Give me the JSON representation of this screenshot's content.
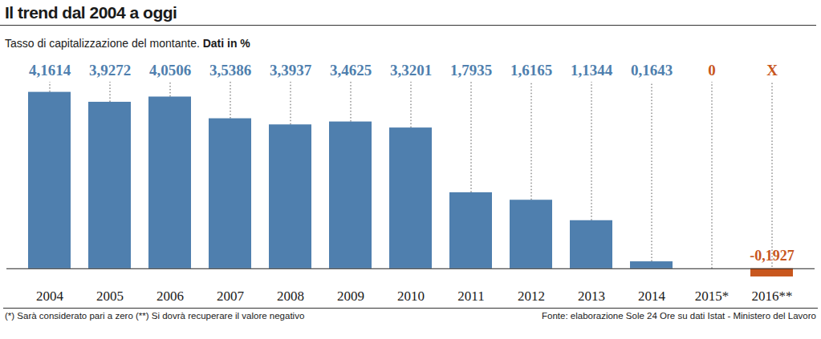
{
  "chart_data": {
    "type": "bar",
    "title": "Il trend dal 2004 a oggi",
    "subtitle": "Tasso di capitalizzazione del montante.",
    "subtitle_bold": "Dati in %",
    "categories": [
      "2004",
      "2005",
      "2006",
      "2007",
      "2008",
      "2009",
      "2010",
      "2011",
      "2012",
      "2013",
      "2014",
      "2015*",
      "2016**"
    ],
    "values": [
      4.1614,
      3.9272,
      4.0506,
      3.5386,
      3.3937,
      3.4625,
      3.3201,
      1.7935,
      1.6165,
      1.1344,
      0.1643,
      0,
      -0.1927
    ],
    "value_labels": [
      "4,1614",
      "3,9272",
      "4,0506",
      "3,5386",
      "3,3937",
      "3,4625",
      "3,3201",
      "1,7935",
      "1,6165",
      "1,1344",
      "0,1643",
      "0",
      "-0,1927"
    ],
    "colors": [
      "#4f7fae",
      "#4f7fae",
      "#4f7fae",
      "#4f7fae",
      "#4f7fae",
      "#4f7fae",
      "#4f7fae",
      "#4f7fae",
      "#4f7fae",
      "#4f7fae",
      "#4f7fae",
      "#c8571e",
      "#c8571e"
    ],
    "annotations": [
      {
        "category": "2016**",
        "text": "X"
      }
    ],
    "ylim": [
      -0.25,
      4.4
    ],
    "data_labels": true,
    "tick_labels": "x",
    "grid": false,
    "notes": "(*) Sarà considerato pari a zero (**) Si dovrà recuperare il valore negativo",
    "source": "Fonte: elaborazione Sole 24 Ore su dati Istat - Ministero del Lavoro"
  }
}
